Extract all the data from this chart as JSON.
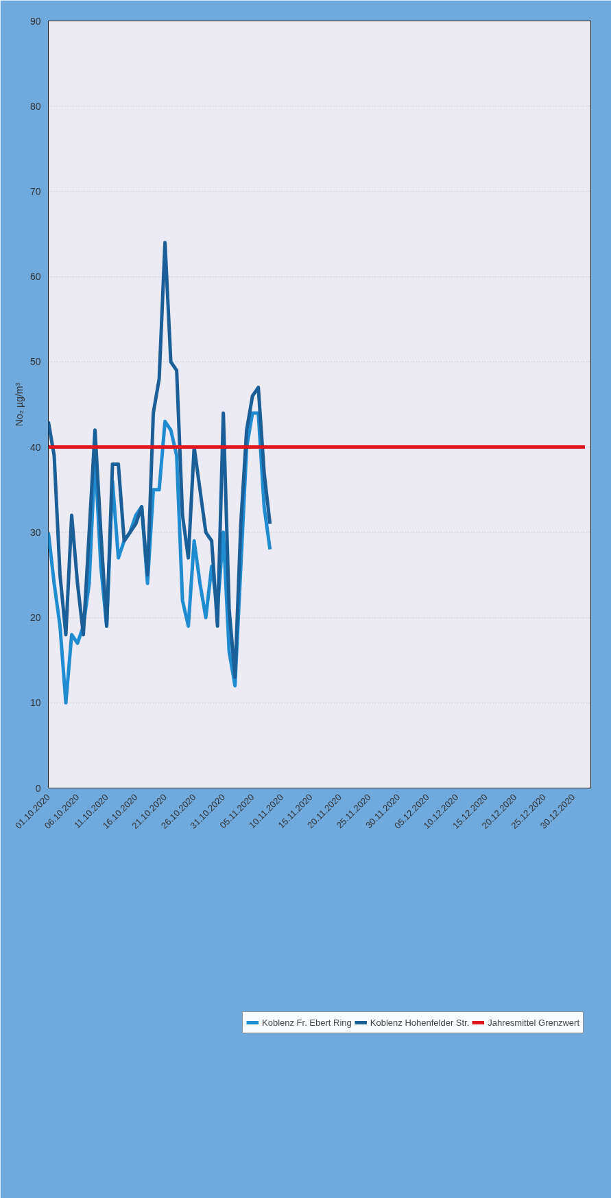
{
  "chart_data": {
    "type": "line",
    "ylabel": "No₂ µg/m³",
    "x": [
      "2020-10-01",
      "2020-10-02",
      "2020-10-03",
      "2020-10-04",
      "2020-10-05",
      "2020-10-06",
      "2020-10-07",
      "2020-10-08",
      "2020-10-09",
      "2020-10-10",
      "2020-10-11",
      "2020-10-12",
      "2020-10-13",
      "2020-10-14",
      "2020-10-15",
      "2020-10-16",
      "2020-10-17",
      "2020-10-18",
      "2020-10-19",
      "2020-10-20",
      "2020-10-21",
      "2020-10-22",
      "2020-10-23",
      "2020-10-24",
      "2020-10-25",
      "2020-10-26",
      "2020-10-27",
      "2020-10-28",
      "2020-10-29",
      "2020-10-30",
      "2020-10-31",
      "2020-11-01",
      "2020-11-02",
      "2020-11-03",
      "2020-11-04",
      "2020-11-05",
      "2020-11-06",
      "2020-11-07",
      "2020-11-08"
    ],
    "series": [
      {
        "name": "Koblenz Fr. Ebert Ring",
        "color": "#1f8bd0",
        "values": [
          30,
          24,
          19,
          10,
          18,
          17,
          19,
          24,
          39,
          26,
          19,
          36,
          27,
          29,
          30,
          32,
          33,
          24,
          35,
          35,
          43,
          42,
          39,
          22,
          19,
          29,
          24,
          20,
          26,
          21,
          30,
          16,
          12,
          26,
          40,
          44,
          44,
          33,
          28
        ]
      },
      {
        "name": "Koblenz Hohenfelder Str.",
        "color": "#1b5f98",
        "values": [
          43,
          39,
          25,
          18,
          32,
          24,
          18,
          30,
          42,
          30,
          19,
          38,
          38,
          29,
          30,
          31,
          33,
          25,
          44,
          48,
          64,
          50,
          49,
          32,
          27,
          40,
          35,
          30,
          29,
          19,
          44,
          21,
          13,
          31,
          42,
          46,
          47,
          37,
          31
        ]
      },
      {
        "name": "Jahresmittel Grenzwert",
        "color": "#e0161e",
        "x": [
          "2020-10-01",
          "2021-01-01"
        ],
        "values": [
          40,
          40
        ]
      }
    ],
    "xlim": [
      "2020-10-01",
      "2021-01-02"
    ],
    "xticks": [
      {
        "value": "2020-10-01",
        "label": "01.10.2020"
      },
      {
        "value": "2020-10-06",
        "label": "06.10.2020"
      },
      {
        "value": "2020-10-11",
        "label": "11.10.2020"
      },
      {
        "value": "2020-10-16",
        "label": "16.10.2020"
      },
      {
        "value": "2020-10-21",
        "label": "21.10.2020"
      },
      {
        "value": "2020-10-26",
        "label": "26.10.2020"
      },
      {
        "value": "2020-10-31",
        "label": "31.10.2020"
      },
      {
        "value": "2020-11-05",
        "label": "05.11.2020"
      },
      {
        "value": "2020-11-10",
        "label": "10.11.2020"
      },
      {
        "value": "2020-11-15",
        "label": "15.11.2020"
      },
      {
        "value": "2020-11-20",
        "label": "20.11.2020"
      },
      {
        "value": "2020-11-25",
        "label": "25.11.2020"
      },
      {
        "value": "2020-11-30",
        "label": "30.11.2020"
      },
      {
        "value": "2020-12-05",
        "label": "05.12.2020"
      },
      {
        "value": "2020-12-10",
        "label": "10.12.2020"
      },
      {
        "value": "2020-12-15",
        "label": "15.12.2020"
      },
      {
        "value": "2020-12-20",
        "label": "20.12.2020"
      },
      {
        "value": "2020-12-25",
        "label": "25.12.2020"
      },
      {
        "value": "2020-12-30",
        "label": "30.12.2020"
      }
    ],
    "ylim": [
      0,
      90
    ],
    "yticks": [
      0,
      10,
      20,
      30,
      40,
      50,
      60,
      70,
      80,
      90
    ],
    "grid": "y",
    "legend": "bottom",
    "line_style": "solid",
    "marker": "none"
  }
}
